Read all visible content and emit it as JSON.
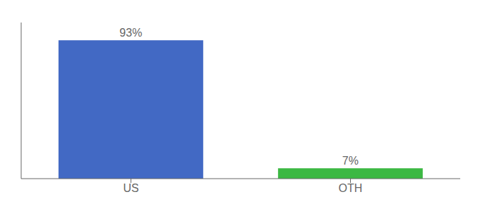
{
  "chart_data": {
    "type": "bar",
    "categories": [
      "US",
      "OTH"
    ],
    "values": [
      93,
      7
    ],
    "value_labels": [
      "93%",
      "7%"
    ],
    "colors": [
      "#4269c4",
      "#3cb843"
    ],
    "ylim": [
      0,
      105
    ],
    "data_labels": true,
    "tick_labels": "x"
  }
}
